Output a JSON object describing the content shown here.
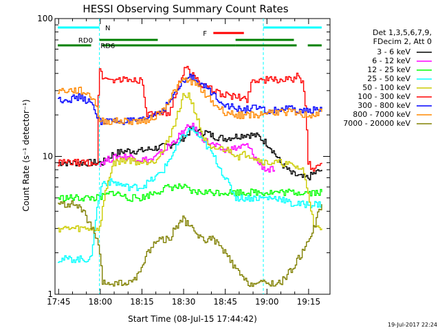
{
  "chart_data": {
    "type": "line",
    "title": "HESSI Observing Summary Count Rates",
    "xlabel": "Start Time (08-Jul-15 17:44:42)",
    "ylabel": "Count Rate (s⁻¹ detector⁻¹)",
    "y_scale": "log",
    "ylim": [
      1,
      100
    ],
    "x_unit": "minutes after 17:44:42 UT",
    "xlim": [
      -1,
      98
    ],
    "x_ticks": [
      {
        "label": "17:45",
        "value": 0.3
      },
      {
        "label": "18:00",
        "value": 15.3
      },
      {
        "label": "18:15",
        "value": 30.3
      },
      {
        "label": "18:30",
        "value": 45.3
      },
      {
        "label": "18:45",
        "value": 60.3
      },
      {
        "label": "19:00",
        "value": 75.3
      },
      {
        "label": "19:15",
        "value": 90.3
      }
    ],
    "y_ticks": [
      {
        "label": "1",
        "value": 1
      },
      {
        "label": "10",
        "value": 10
      },
      {
        "label": "100",
        "value": 100
      }
    ],
    "legend_header": [
      "Det 1,3,5,6,7,9,",
      "FDecim 2, Att 0"
    ],
    "legend_placement": "right",
    "grid": false,
    "series": [
      {
        "name": "3 - 6 keV",
        "color": "#000000",
        "x": [
          0,
          7,
          12,
          16,
          20,
          25,
          30,
          35,
          40,
          43,
          46,
          48,
          50,
          53,
          56,
          60,
          64,
          68,
          72,
          76,
          80,
          84,
          88,
          90,
          92,
          95
        ],
        "y": [
          9,
          9,
          9,
          9,
          10.5,
          11,
          11,
          11.5,
          12,
          13,
          14,
          16,
          15,
          15,
          14,
          13.5,
          14,
          14.5,
          14,
          12,
          9,
          7.5,
          7,
          7,
          7.5,
          8
        ]
      },
      {
        "name": "6 - 12 keV",
        "color": "#ff00ff",
        "x": [
          15,
          18,
          22,
          26,
          30,
          34,
          38,
          42,
          45,
          48,
          50,
          53,
          56,
          60,
          64,
          68,
          72,
          75,
          78
        ],
        "y": [
          9,
          9.5,
          10,
          10,
          9.5,
          9.5,
          11,
          13,
          15,
          17,
          15,
          13,
          12,
          11,
          11.5,
          12,
          9,
          8,
          8
        ]
      },
      {
        "name": "12 - 25 keV",
        "color": "#00ff00",
        "x": [
          0,
          5,
          10,
          15,
          20,
          25,
          30,
          35,
          40,
          45,
          48,
          52,
          56,
          60,
          64,
          68,
          72,
          76,
          80,
          84,
          88,
          92,
          95
        ],
        "y": [
          5,
          5,
          5,
          5,
          5.5,
          5,
          5,
          5.5,
          6,
          6,
          5.5,
          5.5,
          5.5,
          5.5,
          5.5,
          5.5,
          5.5,
          5.5,
          5.5,
          5.5,
          5.5,
          5.5,
          5.5
        ]
      },
      {
        "name": "25 - 50 keV",
        "color": "#00ffff",
        "x": [
          0,
          4,
          8,
          12,
          16,
          20,
          25,
          30,
          35,
          38,
          42,
          45,
          48,
          52,
          56,
          60,
          64,
          68,
          72,
          76,
          80,
          84,
          88,
          92,
          95
        ],
        "y": [
          1.8,
          1.8,
          1.8,
          1.8,
          6.5,
          6.5,
          6,
          6,
          7,
          8,
          11,
          14,
          16,
          13,
          10,
          7,
          5,
          5,
          5,
          5,
          5,
          4.5,
          4.5,
          4.5,
          4.5
        ]
      },
      {
        "name": "50 - 100 keV",
        "color": "#cccc00",
        "x": [
          0,
          5,
          10,
          15,
          20,
          25,
          30,
          35,
          38,
          42,
          45,
          47,
          50,
          52,
          55,
          58,
          62,
          65,
          68,
          70,
          72,
          75,
          80,
          85,
          88,
          92,
          95
        ],
        "y": [
          3,
          3,
          3,
          3,
          9,
          9.5,
          9,
          9.5,
          11,
          17,
          27,
          28,
          19,
          14,
          11,
          11.5,
          11,
          10,
          10.5,
          10,
          9.5,
          9,
          9,
          8.5,
          8,
          3,
          3
        ]
      },
      {
        "name": "100 - 300 keV",
        "color": "#ff0000",
        "x": [
          0,
          4,
          8,
          12,
          14,
          15,
          16,
          18,
          22,
          26,
          30,
          32,
          36,
          40,
          42,
          45,
          46,
          48,
          50,
          53,
          56,
          60,
          64,
          68,
          70,
          72,
          76,
          80,
          84,
          86,
          88,
          90,
          92,
          95
        ],
        "y": [
          9,
          9,
          9,
          9,
          9,
          44,
          38,
          36,
          36,
          36,
          36,
          20,
          20,
          20,
          28,
          40,
          44,
          40,
          36,
          32,
          30,
          28,
          27,
          26,
          36,
          36,
          36,
          36,
          36,
          38,
          35,
          9,
          8,
          9
        ]
      },
      {
        "name": "300 - 800 keV",
        "color": "#0000ff",
        "x": [
          0,
          4,
          8,
          11,
          13,
          15,
          18,
          22,
          26,
          30,
          34,
          38,
          42,
          45,
          48,
          52,
          56,
          60,
          64,
          68,
          70,
          72,
          76,
          80,
          84,
          88,
          92,
          95
        ],
        "y": [
          26,
          26,
          27,
          25,
          22,
          18,
          18,
          18,
          18,
          18,
          20,
          22,
          28,
          35,
          38,
          33,
          28,
          24,
          22,
          22,
          23,
          22,
          21,
          22,
          22,
          21,
          22,
          22
        ]
      },
      {
        "name": "800 - 7000 keV",
        "color": "#ff8800",
        "x": [
          0,
          4,
          8,
          11,
          13,
          15,
          18,
          22,
          26,
          30,
          34,
          38,
          42,
          45,
          48,
          52,
          56,
          60,
          64,
          68,
          72,
          76,
          80,
          84,
          88,
          92,
          95
        ],
        "y": [
          30,
          30,
          30,
          28,
          26,
          18,
          18,
          18,
          18,
          18,
          19,
          22,
          30,
          36,
          35,
          30,
          24,
          21,
          20,
          20,
          20,
          21,
          21,
          21,
          20,
          20,
          21
        ]
      },
      {
        "name": "7000 - 20000 keV",
        "color": "#808000",
        "x": [
          0,
          3,
          6,
          9,
          12,
          14,
          16,
          18,
          22,
          26,
          30,
          32,
          36,
          40,
          42,
          45,
          48,
          52,
          56,
          60,
          64,
          68,
          72,
          76,
          80,
          84,
          88,
          92,
          95
        ],
        "y": [
          4.5,
          4.5,
          4.5,
          4,
          3,
          2.5,
          1.2,
          1.2,
          1.2,
          1.2,
          1.5,
          2,
          2.5,
          2.5,
          3,
          3.5,
          3,
          2.5,
          2.5,
          2,
          1.5,
          1.2,
          1.2,
          1.2,
          1.2,
          1.5,
          2,
          3,
          4.5
        ]
      }
    ],
    "status_bars": [
      {
        "name": "N",
        "color": "#00ffff",
        "segments": [
          [
            0,
            15
          ],
          [
            74,
            95
          ]
        ],
        "label_at": 18
      },
      {
        "name": "F",
        "color": "#ff0000",
        "segments": [
          [
            56,
            67
          ]
        ],
        "label_at": 53
      },
      {
        "name": "RD0",
        "color": "#008000",
        "segments": [
          [
            15,
            36
          ],
          [
            64,
            85
          ]
        ],
        "label_at": 10
      },
      {
        "name": "RD6",
        "color": "#008000",
        "segments": [
          [
            0,
            12
          ],
          [
            16,
            36
          ],
          [
            36,
            64
          ],
          [
            64,
            86
          ],
          [
            90,
            95
          ]
        ],
        "label_at": 18
      }
    ],
    "night_boundaries": [
      15,
      74
    ]
  },
  "stamp": "19-Jul-2017 22:24"
}
